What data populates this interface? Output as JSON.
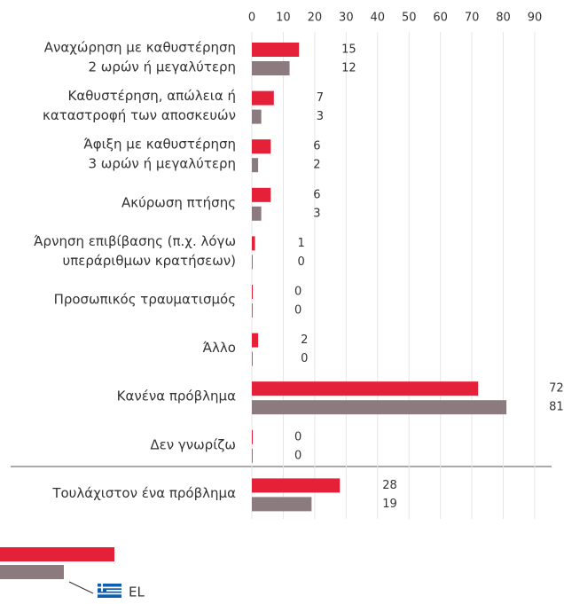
{
  "chart_data": {
    "type": "bar",
    "orientation": "horizontal",
    "categories": [
      [
        "Αναχώρηση με καθυστέρηση",
        "2 ωρών ή μεγαλύτερη"
      ],
      [
        "Καθυστέρηση, απώλεια ή",
        "καταστροφή των αποσκευών"
      ],
      [
        "Άφιξη με καθυστέρηση",
        "3 ωρών ή μεγαλύτερη"
      ],
      [
        "Ακύρωση πτήσης"
      ],
      [
        "Άρνηση επιβίβασης (π.χ. λόγω",
        "υπεράριθμων κρατήσεων)"
      ],
      [
        "Προσωπικός τραυματισμός"
      ],
      [
        "Άλλο"
      ],
      [
        "Κανένα πρόβλημα"
      ],
      [
        "Δεν γνωρίζω"
      ],
      [
        "Τουλάχιστον ένα πρόβλημα"
      ]
    ],
    "series": [
      {
        "color": "#e42139",
        "values": [
          15,
          7,
          6,
          6,
          1,
          0,
          2,
          72,
          0,
          28
        ]
      },
      {
        "name": "EL",
        "color": "#8b7b7f",
        "values": [
          12,
          3,
          2,
          3,
          0,
          0,
          0,
          81,
          0,
          19
        ]
      }
    ],
    "xlim": [
      0,
      90
    ],
    "xticks": [
      0,
      10,
      20,
      30,
      40,
      50,
      60,
      70,
      80,
      90
    ],
    "grid": true
  }
}
